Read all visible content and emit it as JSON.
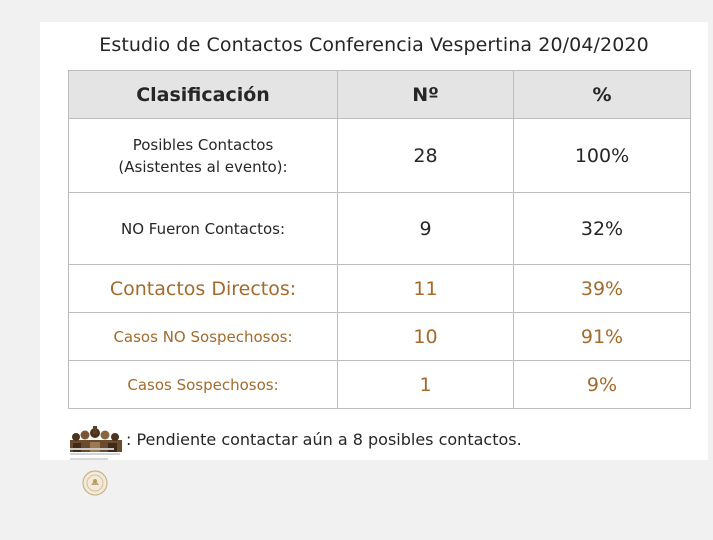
{
  "title": "Estudio de Contactos Conferencia Vespertina 20/04/2020",
  "table": {
    "headers": [
      "Clasificación",
      "Nº",
      "%"
    ],
    "rows": [
      {
        "label_line1": "Posibles Contactos",
        "label_line2": "(Asistentes al evento):",
        "count": "28",
        "percent": "100%"
      },
      {
        "label": "NO Fueron Contactos:",
        "count": "9",
        "percent": "32%"
      },
      {
        "label": "Contactos Directos:",
        "count": "11",
        "percent": "39%"
      },
      {
        "label": "Casos NO Sospechosos:",
        "count": "10",
        "percent": "91%"
      },
      {
        "label": "Casos Sospechosos:",
        "count": "1",
        "percent": "9%"
      }
    ]
  },
  "note": ": Pendiente contactar aún a 8 posibles contactos.",
  "colors": {
    "accent_brown": "#a46a2c",
    "header_bg": "#e4e4e4",
    "border": "#bdbdbd"
  },
  "icons": {
    "note_icon": "crowd-icon",
    "logo": "seal-icon"
  }
}
